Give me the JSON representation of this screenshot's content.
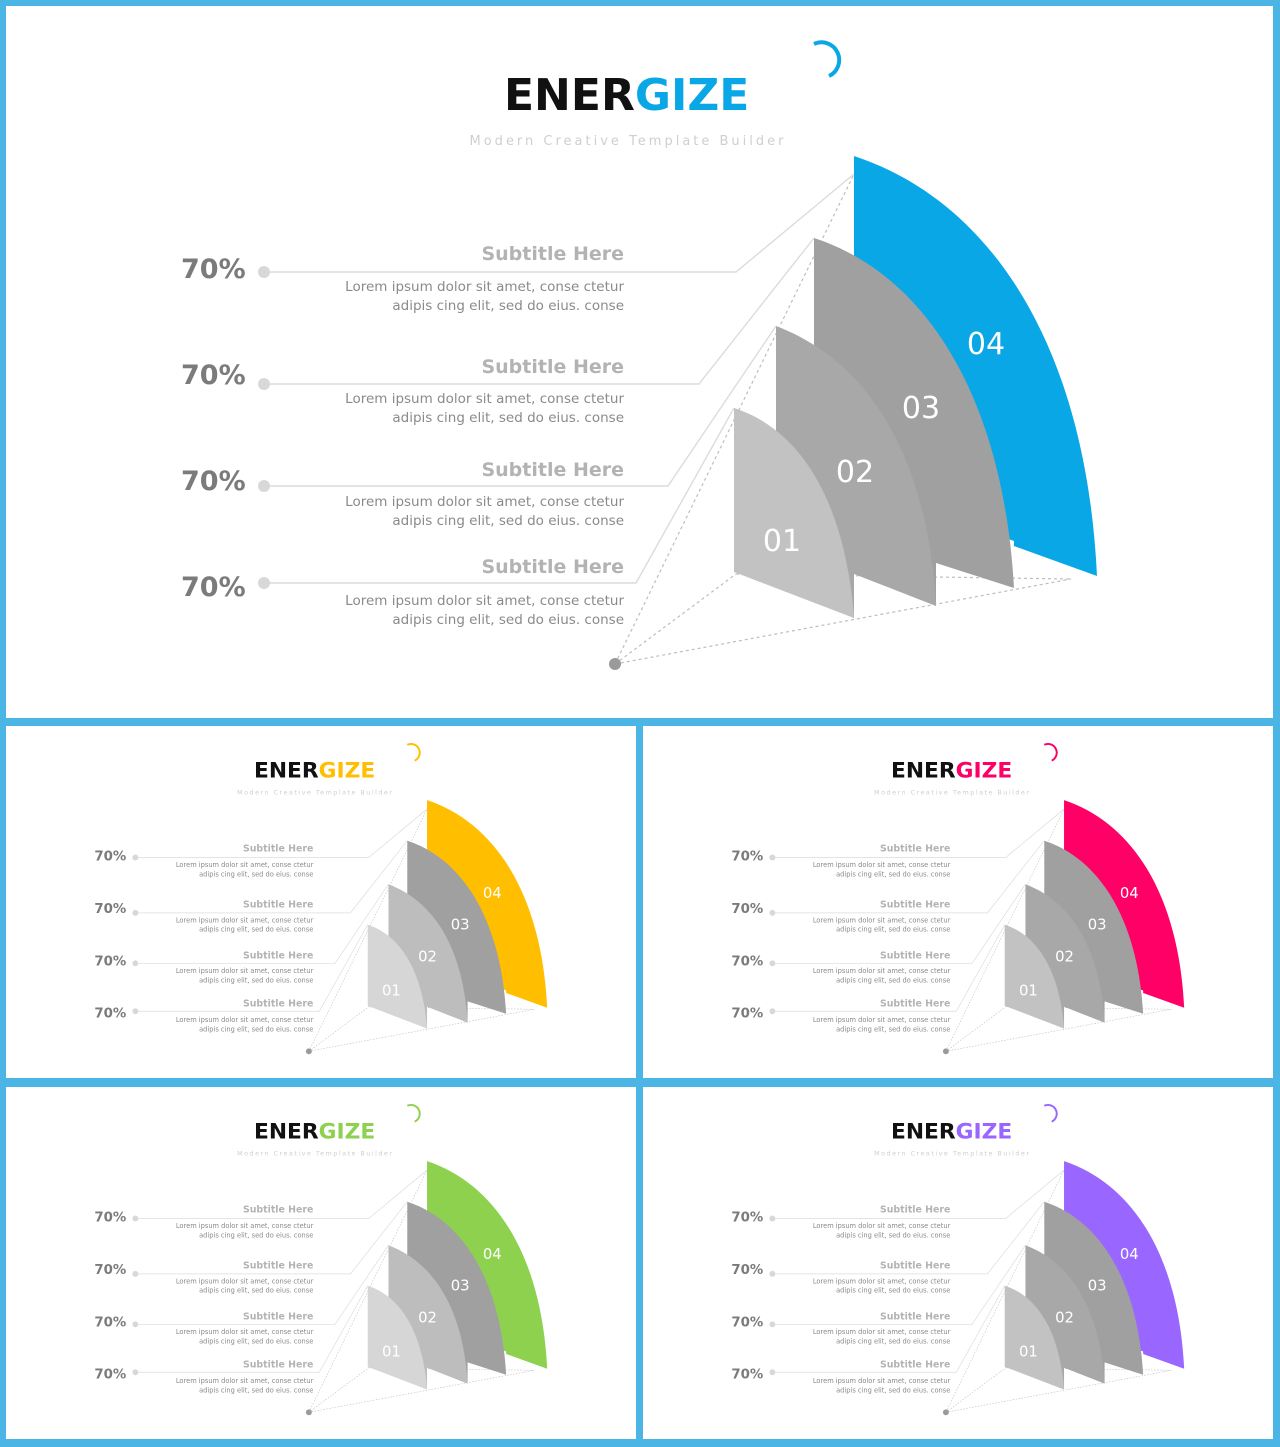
{
  "brand": {
    "part1": "ENER",
    "part2": "GIZE",
    "tagline": "Modern Creative Template Builder"
  },
  "rows": [
    {
      "percent": "70%",
      "subtitle": "Subtitle Here",
      "body_line1": "Lorem ipsum dolor sit amet, conse ctetur",
      "body_line2": "adipis cing elit, sed do eius. conse"
    },
    {
      "percent": "70%",
      "subtitle": "Subtitle Here",
      "body_line1": "Lorem ipsum dolor sit amet, conse ctetur",
      "body_line2": "adipis cing elit, sed do eius. conse"
    },
    {
      "percent": "70%",
      "subtitle": "Subtitle Here",
      "body_line1": "Lorem ipsum dolor sit amet, conse ctetur",
      "body_line2": "adipis cing elit, sed do eius. conse"
    },
    {
      "percent": "70%",
      "subtitle": "Subtitle Here",
      "body_line1": "Lorem ipsum dolor sit amet, conse ctetur",
      "body_line2": "adipis cing elit, sed do eius. conse"
    }
  ],
  "segments": [
    "01",
    "02",
    "03",
    "04"
  ],
  "colors": {
    "frame": "#4bb5e5",
    "shade_01": "#c2c2c2",
    "shade_02": "#a8a8a8",
    "shade_03": "#a0a0a0",
    "shade_01_light": "#d6d6d6",
    "shade_02_light": "#bdbdbd"
  },
  "slides": [
    {
      "id": "slide-main",
      "accent": "#0aa7e6",
      "light_steps": false
    },
    {
      "id": "slide-yellow",
      "accent": "#ffbe00",
      "light_steps": true
    },
    {
      "id": "slide-pink",
      "accent": "#ff0066",
      "light_steps": false
    },
    {
      "id": "slide-green",
      "accent": "#8ed14f",
      "light_steps": true
    },
    {
      "id": "slide-purple",
      "accent": "#9966ff",
      "light_steps": false
    }
  ]
}
